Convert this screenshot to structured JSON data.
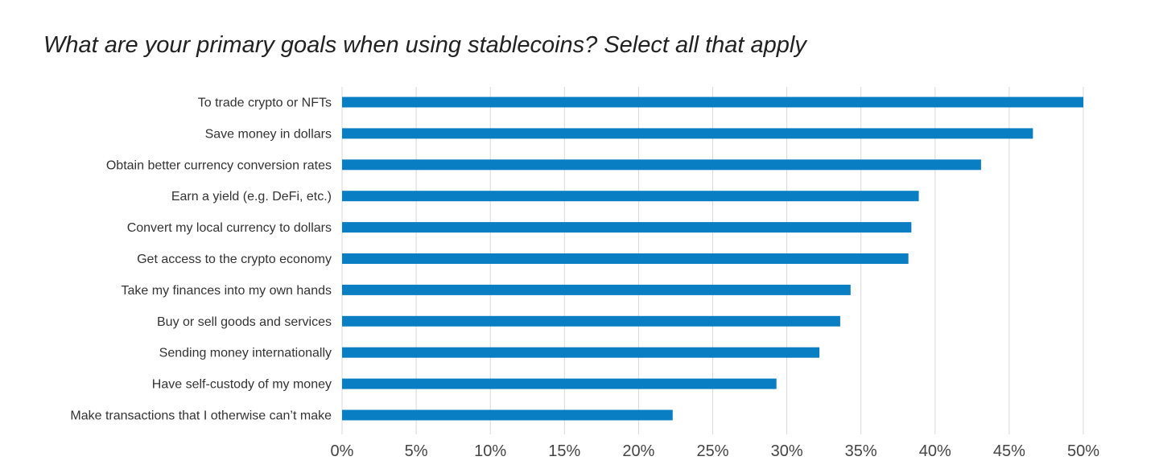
{
  "chart_data": {
    "type": "bar",
    "orientation": "horizontal",
    "title": "What are your primary goals when using stablecoins? Select all that apply",
    "xlabel": "",
    "ylabel": "",
    "categories": [
      "To trade crypto or NFTs",
      "Save money in dollars",
      "Obtain better currency conversion rates",
      "Earn a yield (e.g. DeFi, etc.)",
      "Convert my local currency to dollars",
      "Get access to the crypto economy",
      "Take my finances into my own hands",
      "Buy or sell goods and services",
      "Sending money internationally",
      "Have self-custody of my money",
      "Make transactions that I otherwise can’t make"
    ],
    "values": [
      50,
      46.6,
      43.1,
      38.9,
      38.4,
      38.2,
      34.3,
      33.6,
      32.2,
      29.3,
      22.3
    ],
    "xlim": [
      0,
      50
    ],
    "ticks": [
      0,
      5,
      10,
      15,
      20,
      25,
      30,
      35,
      40,
      45,
      50
    ],
    "tick_labels": [
      "0%",
      "5%",
      "10%",
      "15%",
      "20%",
      "25%",
      "30%",
      "35%",
      "40%",
      "45%",
      "50%"
    ],
    "grid": true,
    "legend": "none",
    "colors": {
      "bar": "#0a7ec2",
      "grid": "#d9d9d9",
      "label": "#333333"
    }
  }
}
